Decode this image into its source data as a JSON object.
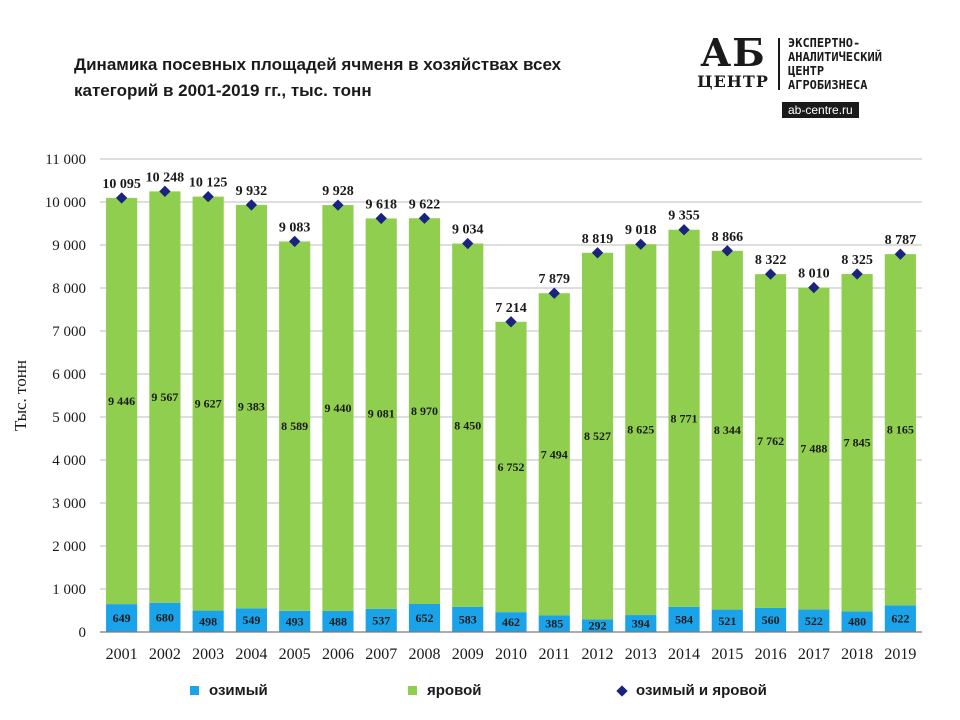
{
  "title": "Динамика посевных площадей ячменя в хозяйствах всех категорий в 2001-2019 гг., тыс. тонн",
  "logo": {
    "mark_top": "АБ",
    "mark_bottom": "ЦЕНТР",
    "lines": [
      "ЭКСПЕРТНО-",
      "АНАЛИТИЧЕСКИЙ",
      "ЦЕНТР",
      "АГРОБИЗНЕСА"
    ],
    "url": "ab-centre.ru"
  },
  "colors": {
    "winter": "#1aa3e8",
    "spring": "#8fce4f",
    "total": "#1a237e",
    "grid": "#bdbdbd",
    "text": "#1a1a1a"
  },
  "chart_data": {
    "type": "bar",
    "stacked": true,
    "ylabel": "Тыс. тонн",
    "ylim": [
      0,
      11000
    ],
    "yticks": [
      0,
      1000,
      2000,
      3000,
      4000,
      5000,
      6000,
      7000,
      8000,
      9000,
      10000,
      11000
    ],
    "ytick_labels": [
      "0",
      "1 000",
      "2 000",
      "3 000",
      "4 000",
      "5 000",
      "6 000",
      "7 000",
      "8 000",
      "9 000",
      "10 000",
      "11 000"
    ],
    "grid": "horizontal",
    "categories": [
      "2001",
      "2002",
      "2003",
      "2004",
      "2005",
      "2006",
      "2007",
      "2008",
      "2009",
      "2010",
      "2011",
      "2012",
      "2013",
      "2014",
      "2015",
      "2016",
      "2017",
      "2018",
      "2019"
    ],
    "series": [
      {
        "name": "озимый",
        "values": [
          649,
          680,
          498,
          549,
          493,
          488,
          537,
          652,
          583,
          462,
          385,
          292,
          394,
          584,
          521,
          560,
          522,
          480,
          622
        ],
        "labels": [
          "649",
          "680",
          "498",
          "549",
          "493",
          "488",
          "537",
          "652",
          "583",
          "462",
          "385",
          "292",
          "394",
          "584",
          "521",
          "560",
          "522",
          "480",
          "622"
        ]
      },
      {
        "name": "яровой",
        "values": [
          9446,
          9567,
          9627,
          9383,
          8589,
          9440,
          9081,
          8970,
          8450,
          6752,
          7494,
          8527,
          8625,
          8771,
          8344,
          7762,
          7488,
          7845,
          8165
        ],
        "labels": [
          "9 446",
          "9 567",
          "9 627",
          "9 383",
          "8 589",
          "9 440",
          "9 081",
          "8 970",
          "8 450",
          "6 752",
          "7 494",
          "8 527",
          "8 625",
          "8 771",
          "8 344",
          "7 762",
          "7 488",
          "7 845",
          "8 165"
        ]
      },
      {
        "name": "озимый и яровой",
        "type": "scatter",
        "values": [
          10095,
          10248,
          10125,
          9932,
          9083,
          9928,
          9618,
          9622,
          9034,
          7214,
          7879,
          8819,
          9018,
          9355,
          8866,
          8322,
          8010,
          8325,
          8787
        ],
        "labels": [
          "10 095",
          "10 248",
          "10 125",
          "9 932",
          "9 083",
          "9 928",
          "9 618",
          "9 622",
          "9 034",
          "7 214",
          "7 879",
          "8 819",
          "9 018",
          "9 355",
          "8 866",
          "8 322",
          "8 010",
          "8 325",
          "8 787"
        ]
      }
    ],
    "legend": "bottom"
  }
}
